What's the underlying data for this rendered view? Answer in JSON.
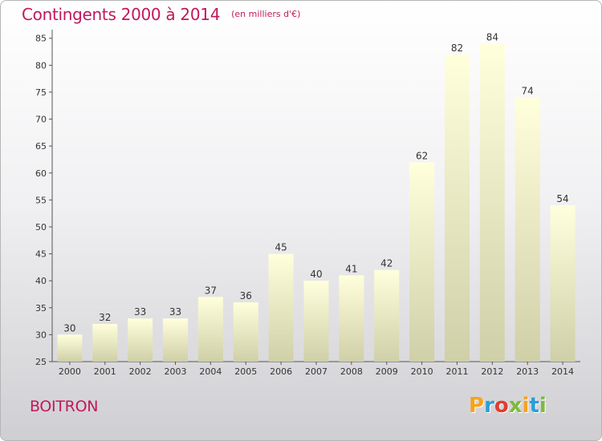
{
  "title": "Contingents 2000 à 2014",
  "subtitle": "(en milliers d'€)",
  "place": "BOITRON",
  "logo": {
    "text": "Proxiti",
    "letters": [
      {
        "ch": "P",
        "color": "#f7a21b"
      },
      {
        "ch": "r",
        "color": "#2a9fd6"
      },
      {
        "ch": "o",
        "color": "#e23c2f"
      },
      {
        "ch": "x",
        "color": "#7dbb3b"
      },
      {
        "ch": "i",
        "color": "#f7a21b"
      },
      {
        "ch": "t",
        "color": "#2a9fd6"
      },
      {
        "ch": "i",
        "color": "#7dbb3b"
      }
    ]
  },
  "chart_data": {
    "type": "bar",
    "categories": [
      "2000",
      "2001",
      "2002",
      "2003",
      "2004",
      "2005",
      "2006",
      "2007",
      "2008",
      "2009",
      "2010",
      "2011",
      "2012",
      "2013",
      "2014"
    ],
    "values": [
      30,
      32,
      33,
      33,
      37,
      36,
      45,
      40,
      41,
      42,
      62,
      82,
      84,
      74,
      54
    ],
    "yticks": [
      25,
      30,
      35,
      40,
      45,
      50,
      55,
      60,
      65,
      70,
      75,
      80,
      85
    ],
    "ylim": [
      25,
      86
    ],
    "grid": false,
    "colors": {
      "bar_top": "#ffffdc",
      "bar_bottom": "#cfcfa8",
      "axis": "#555555",
      "text": "#333333"
    }
  }
}
